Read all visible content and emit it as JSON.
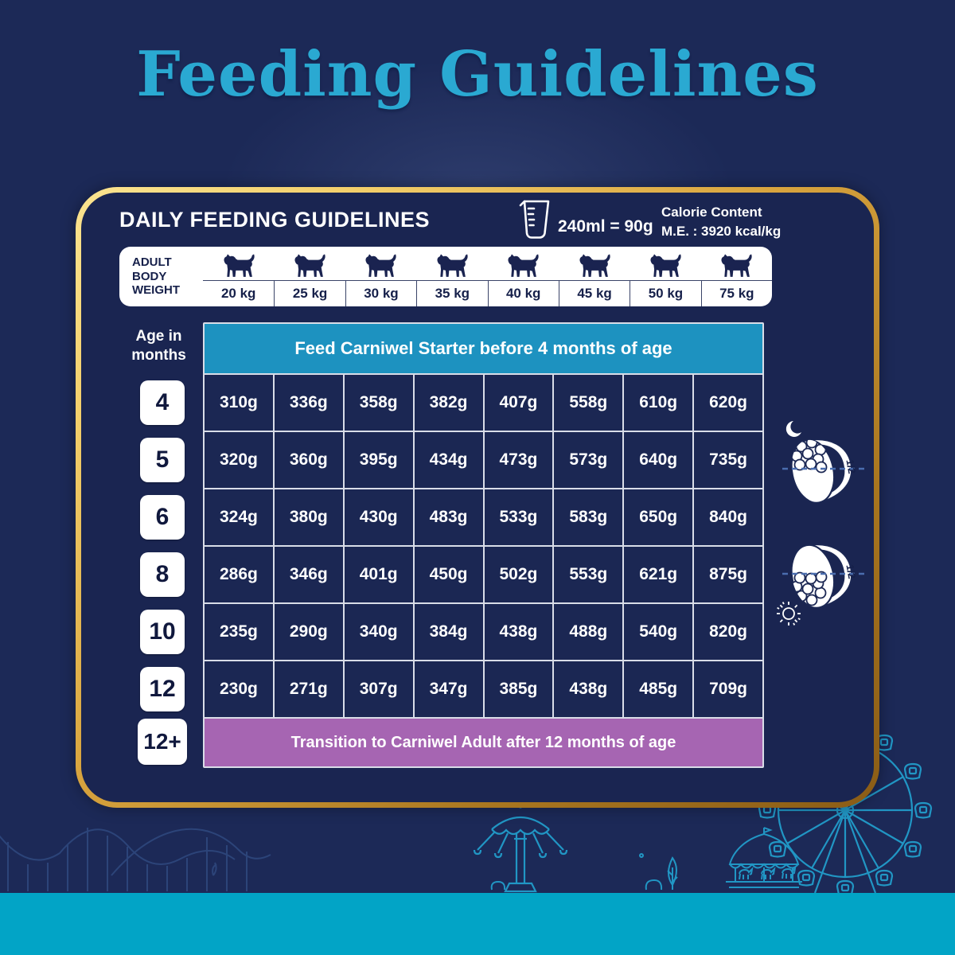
{
  "page": {
    "title": "Feeding Guidelines"
  },
  "card": {
    "heading": "DAILY FEEDING GUIDELINES",
    "cup_note": "240ml = 90g",
    "calorie_title": "Calorie Content",
    "calorie_value": "M.E. : 3920 kcal/kg",
    "weight_label": "ADULT BODY WEIGHT",
    "weights": [
      "20 kg",
      "25 kg",
      "30 kg",
      "35 kg",
      "40 kg",
      "45 kg",
      "50 kg",
      "75 kg"
    ],
    "age_label": "Age in months",
    "top_banner": "Feed Carniwel Starter before 4 months of age",
    "bottom_banner": "Transition to Carniwel Adult after 12 months of age",
    "plus_age": "12+",
    "bowl_half": "1/2",
    "rows": [
      {
        "age": "4",
        "values": [
          "310g",
          "336g",
          "358g",
          "382g",
          "407g",
          "558g",
          "610g",
          "620g"
        ]
      },
      {
        "age": "5",
        "values": [
          "320g",
          "360g",
          "395g",
          "434g",
          "473g",
          "573g",
          "640g",
          "735g"
        ]
      },
      {
        "age": "6",
        "values": [
          "324g",
          "380g",
          "430g",
          "483g",
          "533g",
          "583g",
          "650g",
          "840g"
        ]
      },
      {
        "age": "8",
        "values": [
          "286g",
          "346g",
          "401g",
          "450g",
          "502g",
          "553g",
          "621g",
          "875g"
        ]
      },
      {
        "age": "10",
        "values": [
          "235g",
          "290g",
          "340g",
          "384g",
          "438g",
          "488g",
          "540g",
          "820g"
        ]
      },
      {
        "age": "12",
        "values": [
          "230g",
          "271g",
          "307g",
          "347g",
          "385g",
          "438g",
          "485g",
          "709g"
        ]
      }
    ]
  },
  "icons": {
    "measuring_cup": "measuring-cup-icon",
    "dog": "dog-icon",
    "moon": "moon-icon",
    "sun": "sun-icon",
    "bowl": "bowl-icon",
    "ferris_wheel": "ferris-wheel-art",
    "carousel": "carousel-art",
    "swing_ride": "swing-ride-art",
    "roller_coaster": "roller-coaster-art"
  },
  "colors": {
    "background_navy": "#1c2957",
    "card_navy": "#1a2551",
    "cell_navy": "#1b2753",
    "title_teal": "#2aa9d2",
    "banner_blue": "#1d92c0",
    "banner_purple": "#a665b2",
    "bottom_bar_teal": "#02a4c6",
    "gold_border": "#d9a53f",
    "lineart_teal": "#2196c4"
  },
  "chart_data": {
    "type": "table",
    "title": "DAILY FEEDING GUIDELINES",
    "columns_label": "Adult body weight",
    "columns": [
      "20 kg",
      "25 kg",
      "30 kg",
      "35 kg",
      "40 kg",
      "45 kg",
      "50 kg",
      "75 kg"
    ],
    "rows_label": "Age in months",
    "rows": [
      {
        "age_months": "4",
        "grams": [
          310,
          336,
          358,
          382,
          407,
          558,
          610,
          620
        ]
      },
      {
        "age_months": "5",
        "grams": [
          320,
          360,
          395,
          434,
          473,
          573,
          640,
          735
        ]
      },
      {
        "age_months": "6",
        "grams": [
          324,
          380,
          430,
          483,
          533,
          583,
          650,
          840
        ]
      },
      {
        "age_months": "8",
        "grams": [
          286,
          346,
          401,
          450,
          502,
          553,
          621,
          875
        ]
      },
      {
        "age_months": "10",
        "grams": [
          235,
          290,
          340,
          384,
          438,
          488,
          540,
          820
        ]
      },
      {
        "age_months": "12",
        "grams": [
          230,
          271,
          307,
          347,
          385,
          438,
          485,
          709
        ]
      }
    ],
    "notes": [
      "Feed Carniwel Starter before 4 months of age",
      "Transition to Carniwel Adult after 12 months of age",
      "240ml = 90g",
      "Calorie Content M.E. : 3920 kcal/kg",
      "Feed 1/2 portion in the morning (sun) and 1/2 in the evening (moon)"
    ]
  }
}
